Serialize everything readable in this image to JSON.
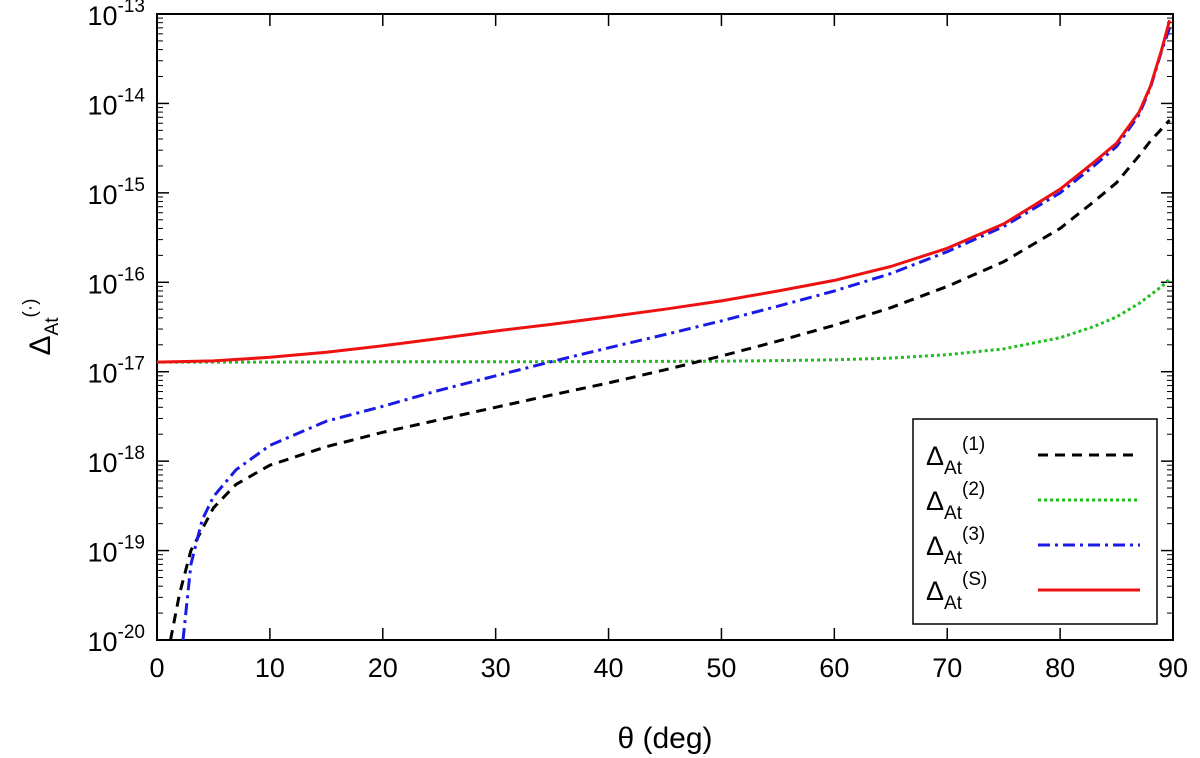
{
  "chart_data": {
    "type": "line",
    "title": "",
    "xlabel": "θ (deg)",
    "ylabel": {
      "base": "Δ",
      "sub": "At",
      "sup": "(·)"
    },
    "xlim": [
      0,
      90
    ],
    "ylim": [
      1e-20,
      1e-13
    ],
    "yscale": "log",
    "x_ticks": [
      0,
      10,
      20,
      30,
      40,
      50,
      60,
      70,
      80,
      90
    ],
    "x_tick_labels": [
      "0",
      "10",
      "20",
      "30",
      "40",
      "50",
      "60",
      "70",
      "80",
      "90"
    ],
    "y_ticks": [
      {
        "value": 1e-20,
        "base": "10",
        "exp": "-20"
      },
      {
        "value": 1e-19,
        "base": "10",
        "exp": "-19"
      },
      {
        "value": 1e-18,
        "base": "10",
        "exp": "-18"
      },
      {
        "value": 1e-17,
        "base": "10",
        "exp": "-17"
      },
      {
        "value": 1e-16,
        "base": "10",
        "exp": "-16"
      },
      {
        "value": 1e-15,
        "base": "10",
        "exp": "-15"
      },
      {
        "value": 1e-14,
        "base": "10",
        "exp": "-14"
      },
      {
        "value": 1e-13,
        "base": "10",
        "exp": "-13"
      }
    ],
    "grid": false,
    "legend_position": "bottom-right",
    "series": [
      {
        "name": "Δ_At^(1)",
        "label_base": "Δ",
        "label_sub": "At",
        "label_sup": "(1)",
        "color": "#000000",
        "style": "dashed",
        "x": [
          1.2,
          2,
          3,
          5,
          7,
          10,
          15,
          20,
          25,
          30,
          35,
          40,
          45,
          50,
          55,
          60,
          65,
          70,
          75,
          80,
          83,
          85,
          87,
          88,
          89,
          89.7
        ],
        "y": [
          1e-20,
          3.3e-20,
          1e-19,
          3e-19,
          5.5e-19,
          9e-19,
          1.45e-18,
          2.1e-18,
          2.9e-18,
          4e-18,
          5.5e-18,
          7.5e-18,
          1.05e-17,
          1.5e-17,
          2.2e-17,
          3.3e-17,
          5.2e-17,
          9e-17,
          1.7e-16,
          4e-16,
          8e-16,
          1.3e-15,
          2.6e-15,
          3.8e-15,
          5.2e-15,
          6.5e-15
        ]
      },
      {
        "name": "Δ_At^(2)",
        "label_base": "Δ",
        "label_sub": "At",
        "label_sup": "(2)",
        "color": "#1fbf1f",
        "style": "dotted",
        "x": [
          0,
          10,
          20,
          30,
          40,
          50,
          55,
          60,
          65,
          70,
          75,
          80,
          83,
          85,
          87,
          88,
          89,
          89.7
        ],
        "y": [
          1.28e-17,
          1.28e-17,
          1.29e-17,
          1.29e-17,
          1.3e-17,
          1.31e-17,
          1.33e-17,
          1.36e-17,
          1.42e-17,
          1.55e-17,
          1.8e-17,
          2.4e-17,
          3.2e-17,
          4.1e-17,
          5.8e-17,
          7.2e-17,
          9e-17,
          1.08e-16
        ]
      },
      {
        "name": "Δ_At^(3)",
        "label_base": "Δ",
        "label_sub": "At",
        "label_sup": "(3)",
        "color": "#1a1ae6",
        "style": "dashdot",
        "x": [
          2.3,
          3,
          4,
          5,
          7,
          10,
          15,
          20,
          25,
          30,
          35,
          40,
          45,
          50,
          55,
          60,
          65,
          70,
          75,
          80,
          83,
          85,
          87,
          88,
          89,
          89.7
        ],
        "y": [
          1e-20,
          7e-20,
          2.2e-19,
          4e-19,
          8e-19,
          1.5e-18,
          2.8e-18,
          4.1e-18,
          6.2e-18,
          9e-18,
          1.3e-17,
          1.85e-17,
          2.6e-17,
          3.7e-17,
          5.4e-17,
          8e-17,
          1.25e-16,
          2.2e-16,
          4.2e-16,
          1e-15,
          2e-15,
          3.3e-15,
          7.5e-15,
          1.5e-14,
          3.9e-14,
          7e-14
        ]
      },
      {
        "name": "Δ_At^(S)",
        "label_base": "Δ",
        "label_sub": "At",
        "label_sup": "(S)",
        "color": "#ee1111",
        "style": "solid",
        "x": [
          0,
          5,
          10,
          15,
          20,
          25,
          30,
          35,
          40,
          45,
          50,
          55,
          60,
          65,
          70,
          75,
          80,
          83,
          85,
          87,
          88,
          89,
          89.7
        ],
        "y": [
          1.28e-17,
          1.32e-17,
          1.45e-17,
          1.65e-17,
          1.95e-17,
          2.35e-17,
          2.85e-17,
          3.4e-17,
          4.1e-17,
          5e-17,
          6.2e-17,
          8e-17,
          1.05e-16,
          1.5e-16,
          2.4e-16,
          4.5e-16,
          1.1e-15,
          2.2e-15,
          3.6e-15,
          8e-15,
          1.55e-14,
          4e-14,
          8.5e-14
        ]
      }
    ]
  }
}
